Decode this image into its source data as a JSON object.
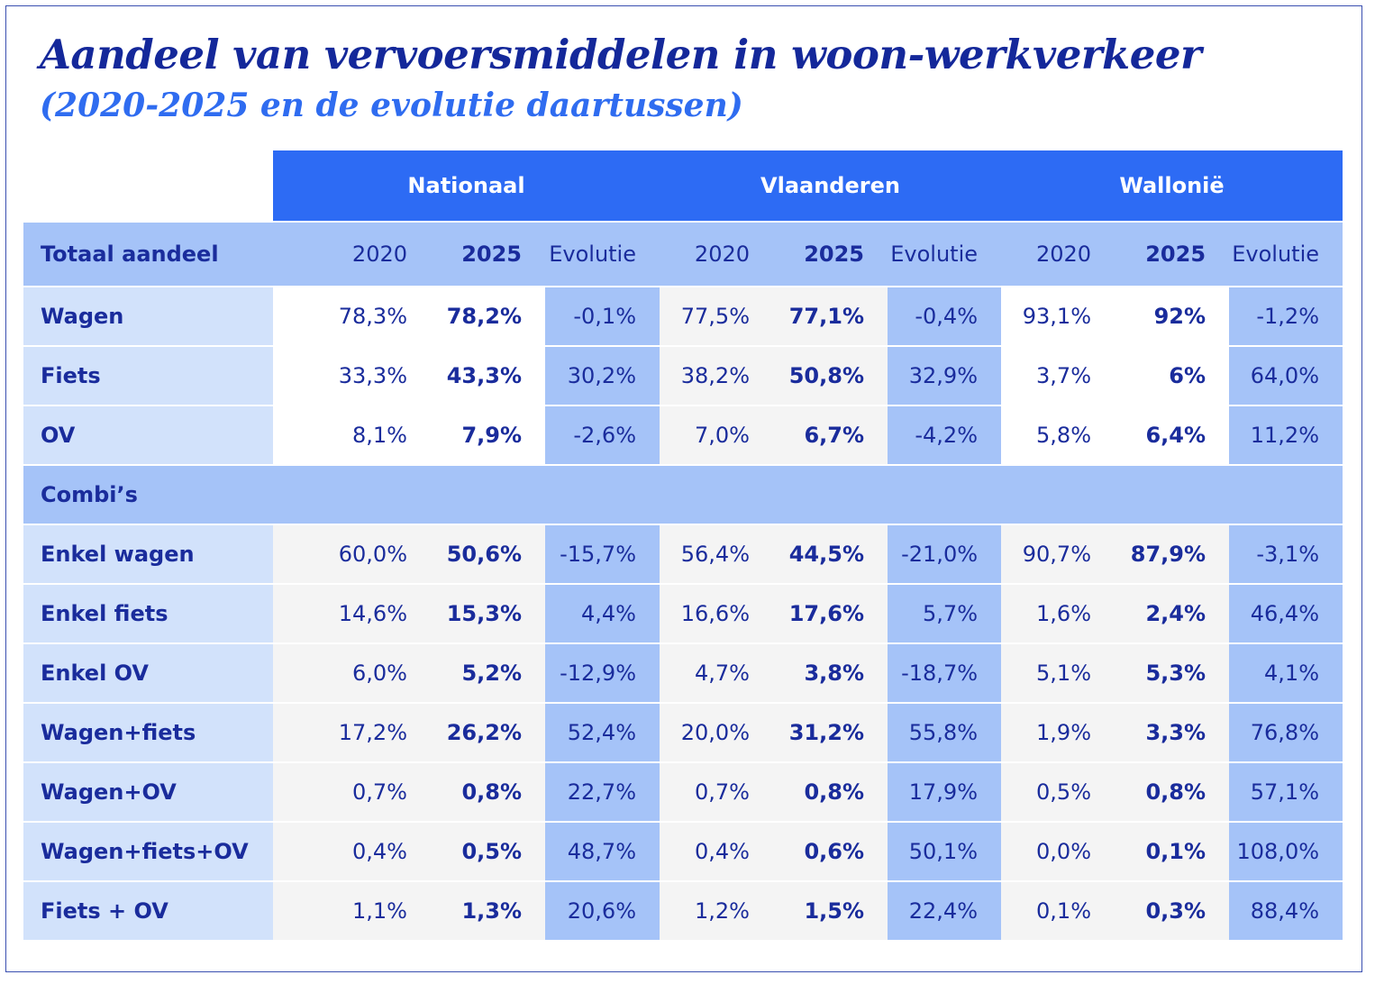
{
  "title": "Aandeel van vervoersmiddelen in woon-werkverkeer",
  "subtitle": "(2020-2025 en de evolutie daartussen)",
  "regions": [
    "Nationaal",
    "Vlaanderen",
    "Wallonië"
  ],
  "subheader": {
    "label": "Totaal aandeel",
    "cols": [
      "2020",
      "2025",
      "Evolutie"
    ]
  },
  "section_label": "Combi’s",
  "total_rows": [
    {
      "label": "Wagen",
      "values": [
        "78,3%",
        "78,2%",
        "-0,1%",
        "77,5%",
        "77,1%",
        "-0,4%",
        "93,1%",
        "92%",
        "-1,2%"
      ]
    },
    {
      "label": "Fiets",
      "values": [
        "33,3%",
        "43,3%",
        "30,2%",
        "38,2%",
        "50,8%",
        "32,9%",
        "3,7%",
        "6%",
        "64,0%"
      ]
    },
    {
      "label": "OV",
      "values": [
        "8,1%",
        "7,9%",
        "-2,6%",
        "7,0%",
        "6,7%",
        "-4,2%",
        "5,8%",
        "6,4%",
        "11,2%"
      ]
    }
  ],
  "combi_rows": [
    {
      "label": "Enkel wagen",
      "values": [
        "60,0%",
        "50,6%",
        "-15,7%",
        "56,4%",
        "44,5%",
        "-21,0%",
        "90,7%",
        "87,9%",
        "-3,1%"
      ]
    },
    {
      "label": "Enkel fiets",
      "values": [
        "14,6%",
        "15,3%",
        "4,4%",
        "16,6%",
        "17,6%",
        "5,7%",
        "1,6%",
        "2,4%",
        "46,4%"
      ]
    },
    {
      "label": "Enkel OV",
      "values": [
        "6,0%",
        "5,2%",
        "-12,9%",
        "4,7%",
        "3,8%",
        "-18,7%",
        "5,1%",
        "5,3%",
        "4,1%"
      ]
    },
    {
      "label": "Wagen+fiets",
      "values": [
        "17,2%",
        "26,2%",
        "52,4%",
        "20,0%",
        "31,2%",
        "55,8%",
        "1,9%",
        "3,3%",
        "76,8%"
      ]
    },
    {
      "label": "Wagen+OV",
      "values": [
        "0,7%",
        "0,8%",
        "22,7%",
        "0,7%",
        "0,8%",
        "17,9%",
        "0,5%",
        "0,8%",
        "57,1%"
      ]
    },
    {
      "label": "Wagen+fiets+OV",
      "values": [
        "0,4%",
        "0,5%",
        "48,7%",
        "0,4%",
        "0,6%",
        "50,1%",
        "0,0%",
        "0,1%",
        "108,0%"
      ]
    },
    {
      "label": "Fiets + OV",
      "values": [
        "1,1%",
        "1,3%",
        "20,6%",
        "1,2%",
        "1,5%",
        "22,4%",
        "0,1%",
        "0,3%",
        "88,4%"
      ]
    }
  ]
}
